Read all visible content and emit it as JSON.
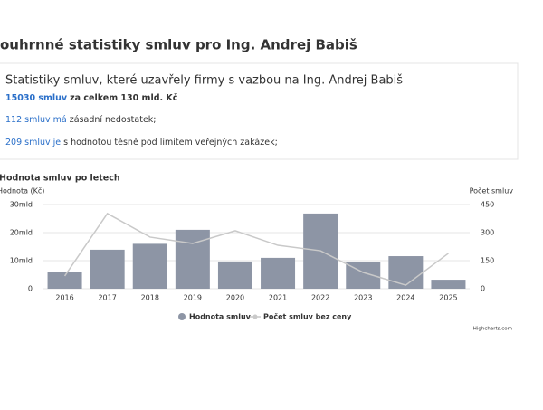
{
  "header": {
    "title": "ouhrnné statistiky smluv pro Ing. Andrej Babiš"
  },
  "summary": {
    "title": "Statistiky smluv, které uzavřely firmy s vazbou na Ing. Andrej Babiš",
    "lines": [
      [
        "15030 smluv",
        "za celkem 130 mld. Kč"
      ],
      [
        "112 smluv má",
        "zásadní nedostatek;"
      ],
      [
        "209 smluv je",
        "s hodnotou těsně pod limitem veřejných zakázek;"
      ]
    ]
  },
  "chart_data": {
    "type": "bar",
    "title": "Hodnota smluv po letech",
    "y_label": "Hodnota (Kč)",
    "y2_label": "Počet smluv",
    "categories": [
      "2016",
      "2017",
      "2018",
      "2019",
      "2020",
      "2021",
      "2022",
      "2023",
      "2024",
      "2025"
    ],
    "series": [
      {
        "name": "Hodnota smluv",
        "type": "bar",
        "color": "#8d95a5",
        "values": [
          6,
          13.9,
          16,
          21,
          9.7,
          11,
          26.8,
          9.4,
          11.6,
          3.2
        ]
      },
      {
        "name": "Počet smluv bez ceny",
        "type": "line",
        "axis": "y2",
        "color": "#c9c9c9",
        "values": [
          68,
          402,
          276,
          242,
          310,
          232,
          203,
          87,
          19,
          189
        ]
      }
    ],
    "ylim": [
      0,
      30
    ],
    "yticks": [
      0,
      {
        "value": 10,
        "label": "10mld"
      },
      {
        "value": 20,
        "label": "20mld"
      },
      {
        "value": 30,
        "label": "30mld"
      }
    ],
    "y2lim": [
      0,
      450
    ],
    "y2ticks": [
      0,
      150,
      300,
      450
    ],
    "grid": true,
    "credit": "Highcharts.com"
  }
}
